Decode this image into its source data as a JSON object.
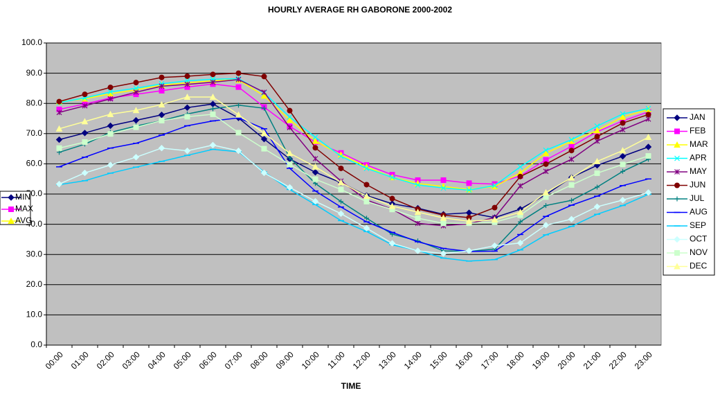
{
  "chart_data": {
    "type": "line",
    "title": "HOURLY AVERAGE RH GABORONE 2000-2002",
    "x_label": "TIME",
    "categories": [
      "00:00",
      "01:00",
      "02:00",
      "03:00",
      "04:00",
      "05:00",
      "06:00",
      "07:00",
      "08:00",
      "09:00",
      "10:00",
      "11:00",
      "12:00",
      "13:00",
      "14:00",
      "15:00",
      "16:00",
      "17:00",
      "18:00",
      "19:00",
      "20:00",
      "21:00",
      "22:00",
      "23:00"
    ],
    "ylim": [
      0,
      100
    ],
    "yticks": [
      {
        "value": 0,
        "label": "0.0"
      },
      {
        "value": 10,
        "label": "10.0"
      },
      {
        "value": 20,
        "label": "20.0"
      },
      {
        "value": 30,
        "label": "30.0"
      },
      {
        "value": 40,
        "label": "40.0"
      },
      {
        "value": 50,
        "label": "50.0"
      },
      {
        "value": 60,
        "label": "60.0"
      },
      {
        "value": 70,
        "label": "70.0"
      },
      {
        "value": 80,
        "label": "80.0"
      },
      {
        "value": 90,
        "label": "90.0"
      },
      {
        "value": 100,
        "label": "100.0"
      }
    ],
    "grid": true,
    "plot_background": "#c0c0c0",
    "legend": "right",
    "series": [
      {
        "name": "JAN",
        "color": "#000080",
        "marker": "diamond",
        "values": [
          68.0,
          70.2,
          72.6,
          74.4,
          76.2,
          78.6,
          79.8,
          75.2,
          68.2,
          61.6,
          57.2,
          53.8,
          49.5,
          46.8,
          45.3,
          43.3,
          43.8,
          42.2,
          45.0,
          49.8,
          55.5,
          59.5,
          62.5,
          65.6
        ]
      },
      {
        "name": "FEB",
        "color": "#ff00ff",
        "marker": "square",
        "values": [
          78.0,
          79.8,
          81.8,
          83.0,
          84.2,
          85.4,
          86.4,
          85.4,
          78.8,
          72.4,
          67.2,
          63.6,
          59.6,
          56.4,
          54.6,
          54.6,
          53.6,
          53.3,
          56.0,
          61.3,
          65.8,
          70.6,
          74.2,
          77.2
        ]
      },
      {
        "name": "MAR",
        "color": "#ffff00",
        "marker": "triangle",
        "values": [
          80.5,
          81.5,
          83.2,
          84.5,
          86.0,
          86.8,
          87.5,
          87.8,
          82.5,
          74.5,
          67.5,
          63.0,
          59.0,
          55.5,
          53.5,
          52.5,
          51.5,
          52.5,
          57.0,
          63.5,
          67.5,
          71.0,
          75.5,
          78.0
        ]
      },
      {
        "name": "APR",
        "color": "#00ffff",
        "marker": "x",
        "values": [
          80.3,
          81.8,
          83.8,
          85.0,
          86.5,
          87.5,
          88.0,
          88.2,
          83.5,
          75.5,
          68.8,
          62.5,
          58.5,
          55.5,
          53.0,
          52.0,
          51.3,
          52.8,
          59.0,
          64.5,
          68.0,
          72.5,
          76.5,
          78.3
        ]
      },
      {
        "name": "MAY",
        "color": "#800080",
        "marker": "star",
        "values": [
          77.0,
          79.2,
          81.5,
          83.7,
          85.7,
          86.3,
          87.0,
          87.9,
          83.7,
          72.0,
          61.7,
          54.3,
          48.0,
          45.0,
          40.3,
          39.5,
          40.2,
          42.2,
          52.7,
          57.5,
          61.5,
          67.5,
          71.3,
          74.8
        ]
      },
      {
        "name": "JUN",
        "color": "#800000",
        "marker": "circle",
        "values": [
          80.6,
          83.0,
          85.3,
          86.9,
          88.6,
          89.0,
          89.6,
          90.0,
          88.9,
          77.6,
          65.3,
          58.5,
          53.1,
          48.5,
          45.0,
          43.0,
          42.2,
          45.5,
          55.8,
          59.9,
          64.4,
          69.0,
          73.5,
          76.3
        ]
      },
      {
        "name": "JUL",
        "color": "#008080",
        "marker": "plus",
        "values": [
          63.8,
          66.5,
          70.4,
          72.5,
          74.3,
          76.5,
          78.2,
          79.4,
          78.4,
          62.0,
          53.5,
          47.5,
          42.0,
          36.7,
          34.5,
          31.2,
          31.0,
          31.8,
          40.8,
          46.2,
          47.9,
          52.3,
          57.5,
          61.5
        ]
      },
      {
        "name": "AUG",
        "color": "#0000ff",
        "marker": "dash",
        "values": [
          59.0,
          62.2,
          65.2,
          66.8,
          69.5,
          72.6,
          74.2,
          75.2,
          71.6,
          58.5,
          51.0,
          45.7,
          40.8,
          37.3,
          34.2,
          32.0,
          31.0,
          31.1,
          36.6,
          42.6,
          46.3,
          49.3,
          52.8,
          55.0
        ]
      },
      {
        "name": "SEP",
        "color": "#00ccff",
        "marker": "dash",
        "values": [
          53.1,
          54.4,
          56.9,
          58.9,
          60.8,
          62.8,
          64.8,
          64.0,
          57.3,
          51.5,
          46.5,
          41.2,
          37.6,
          33.2,
          31.3,
          28.8,
          27.8,
          28.3,
          31.5,
          36.5,
          39.3,
          43.3,
          46.2,
          49.9
        ]
      },
      {
        "name": "OCT",
        "color": "#ccffff",
        "marker": "diamond",
        "values": [
          53.3,
          57.0,
          59.6,
          62.2,
          65.2,
          64.3,
          66.2,
          64.3,
          57.0,
          52.2,
          47.6,
          43.5,
          38.7,
          33.7,
          31.2,
          30.3,
          31.2,
          32.9,
          33.8,
          39.7,
          41.7,
          45.8,
          48.0,
          50.5
        ]
      },
      {
        "name": "NOV",
        "color": "#ccffcc",
        "marker": "square",
        "values": [
          65.2,
          67.2,
          69.9,
          72.1,
          74.3,
          75.6,
          76.4,
          70.3,
          65.0,
          59.8,
          54.9,
          51.5,
          47.5,
          44.9,
          42.0,
          40.3,
          40.3,
          40.7,
          43.0,
          49.0,
          53.0,
          56.9,
          59.8,
          62.6
        ]
      },
      {
        "name": "DEC",
        "color": "#ffff99",
        "marker": "triangle",
        "values": [
          71.6,
          74.0,
          76.4,
          77.7,
          79.6,
          82.1,
          82.1,
          76.2,
          70.1,
          63.5,
          59.0,
          53.8,
          49.3,
          46.0,
          44.0,
          42.1,
          41.0,
          41.5,
          44.0,
          50.5,
          55.4,
          60.8,
          64.4,
          68.8
        ]
      }
    ],
    "legend2": [
      {
        "name": "MIN",
        "color": "#000080",
        "marker": "diamond"
      },
      {
        "name": "MAX",
        "color": "#ff00ff",
        "marker": "square"
      },
      {
        "name": "AVG",
        "color": "#ffff00",
        "marker": "triangle"
      }
    ]
  }
}
